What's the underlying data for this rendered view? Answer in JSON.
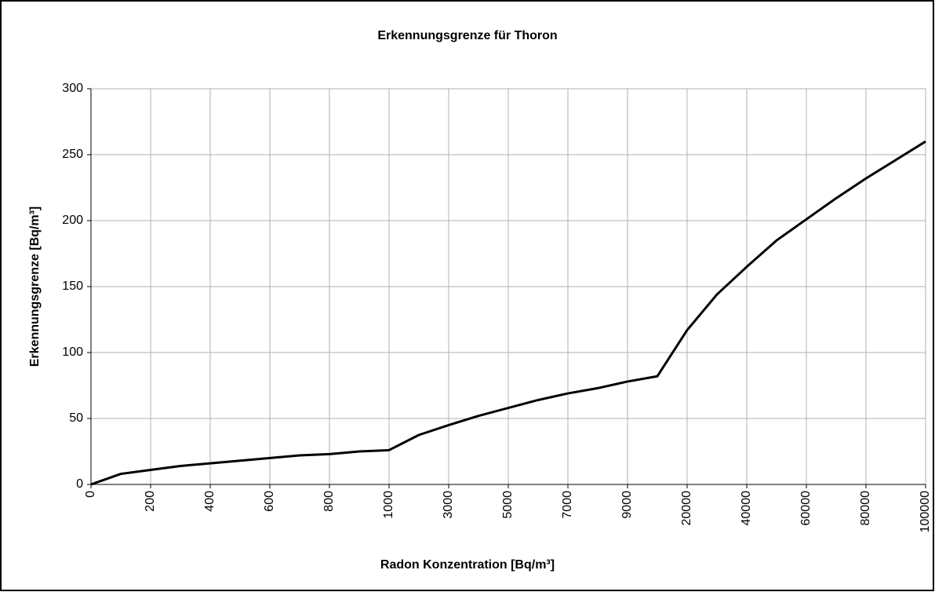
{
  "chart_data": {
    "type": "line",
    "title": "Erkennungsgrenze für Thoron",
    "x_label": "Radon Konzentration [Bq/m³]",
    "y_label": "Erkennungsgrenze [Bq/m³]",
    "categories": [
      0,
      null,
      200,
      null,
      400,
      null,
      600,
      null,
      800,
      null,
      1000,
      null,
      3000,
      null,
      5000,
      null,
      7000,
      null,
      9000,
      null,
      20000,
      null,
      40000,
      null,
      60000,
      null,
      80000,
      null,
      100000
    ],
    "series": [
      {
        "name": "Erkennungsgrenze",
        "color": "#000000",
        "values": [
          0,
          8,
          11,
          14,
          16,
          18,
          20,
          22,
          23,
          25,
          26,
          37.5,
          45,
          52,
          58,
          64,
          69,
          73,
          78,
          82,
          117,
          144,
          165,
          185,
          201,
          217,
          232,
          246,
          260
        ]
      }
    ],
    "ylim": [
      0,
      300
    ],
    "yticks": [
      0,
      50,
      100,
      150,
      200,
      250,
      300
    ],
    "grid": true
  }
}
